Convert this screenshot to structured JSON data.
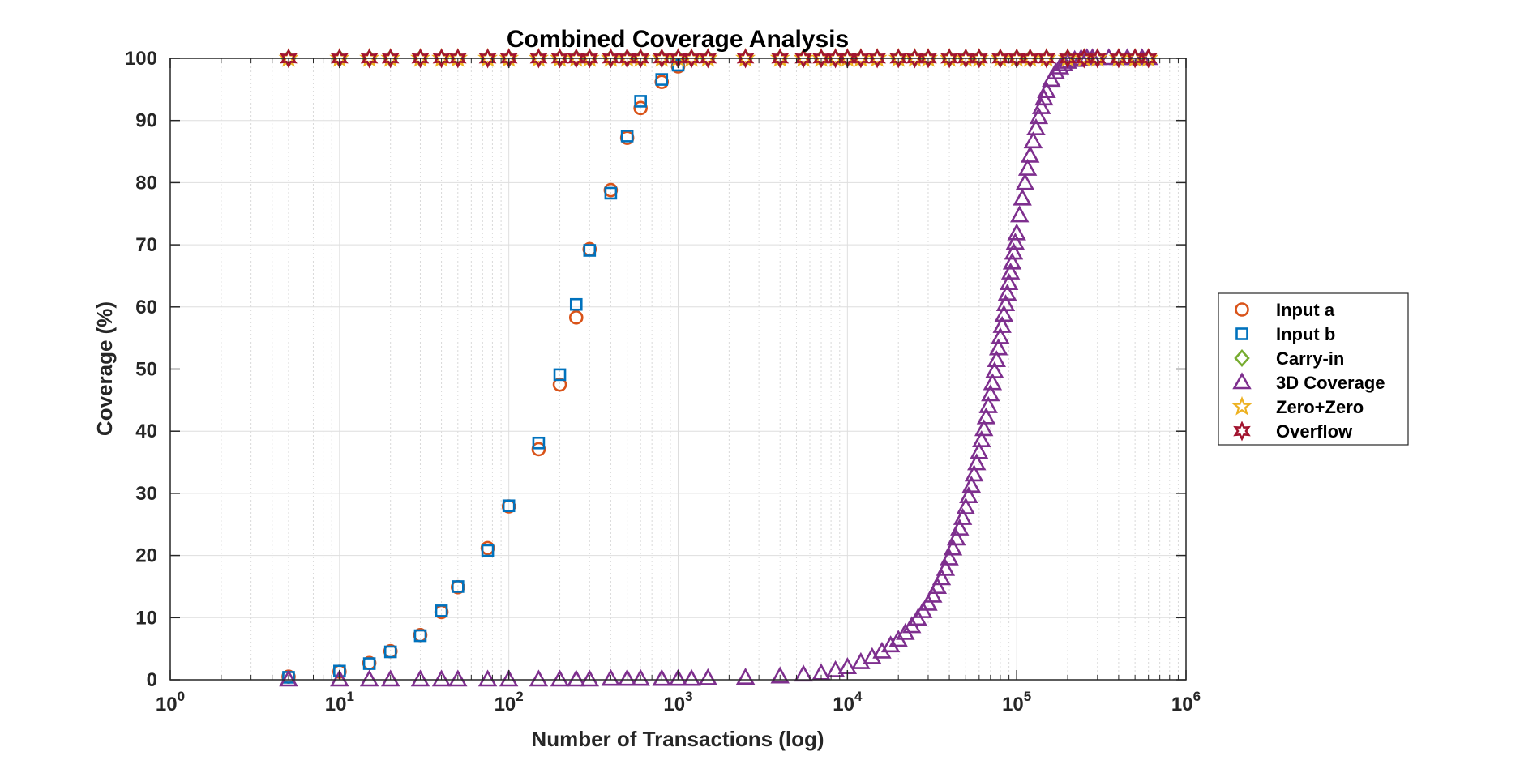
{
  "chart_data": {
    "type": "scatter",
    "title": "Combined Coverage Analysis",
    "xlabel": "Number of Transactions (log)",
    "ylabel": "Coverage (%)",
    "xscale": "log",
    "xlim": [
      1,
      1000000
    ],
    "ylim": [
      0,
      100
    ],
    "grid": true,
    "legend_position": "east-outside",
    "x_ticks": [
      {
        "base": "10",
        "exp": "0",
        "value": 1
      },
      {
        "base": "10",
        "exp": "1",
        "value": 10
      },
      {
        "base": "10",
        "exp": "2",
        "value": 100
      },
      {
        "base": "10",
        "exp": "3",
        "value": 1000
      },
      {
        "base": "10",
        "exp": "4",
        "value": 10000
      },
      {
        "base": "10",
        "exp": "5",
        "value": 100000
      },
      {
        "base": "10",
        "exp": "6",
        "value": 1000000
      }
    ],
    "y_ticks": [
      "0",
      "10",
      "20",
      "30",
      "40",
      "50",
      "60",
      "70",
      "80",
      "90",
      "100"
    ],
    "series": [
      {
        "name": "Input a",
        "marker": "circle",
        "color": "#D95319",
        "x": [
          5,
          10,
          15,
          20,
          30,
          40,
          50,
          75,
          100,
          150,
          200,
          250,
          300,
          400,
          500,
          600,
          800,
          1000
        ],
        "y": [
          0.5,
          1.3,
          2.7,
          4.6,
          7.2,
          10.9,
          14.9,
          21.2,
          27.9,
          37.1,
          47.5,
          58.3,
          69.3,
          78.8,
          87.2,
          92.0,
          96.2,
          98.7
        ]
      },
      {
        "name": "Input b",
        "marker": "square",
        "color": "#0072BD",
        "x": [
          5,
          10,
          15,
          20,
          30,
          40,
          50,
          75,
          100,
          150,
          200,
          250,
          300,
          400,
          500,
          600,
          800,
          1000
        ],
        "y": [
          0.4,
          1.4,
          2.6,
          4.5,
          7.1,
          11.1,
          15.0,
          20.8,
          28.0,
          38.1,
          49.1,
          60.4,
          69.1,
          78.3,
          87.5,
          93.1,
          96.6,
          98.9
        ]
      },
      {
        "name": "Carry-in",
        "marker": "diamond",
        "color": "#77AC30",
        "x": [
          5,
          10,
          15,
          20,
          30,
          40,
          50,
          75,
          100,
          150,
          200,
          250,
          300,
          400,
          500,
          600,
          800,
          1000,
          1200,
          1500,
          2500,
          4000,
          5500,
          7000,
          8500,
          10000,
          12000,
          15000,
          20000,
          25000,
          30000,
          40000,
          50000,
          60000,
          80000,
          100000,
          120000,
          150000,
          200000,
          250000,
          300000,
          400000,
          500000,
          600000
        ],
        "y": [
          100,
          100,
          100,
          100,
          100,
          100,
          100,
          100,
          100,
          100,
          100,
          100,
          100,
          100,
          100,
          100,
          100,
          100,
          100,
          100,
          100,
          100,
          100,
          100,
          100,
          100,
          100,
          100,
          100,
          100,
          100,
          100,
          100,
          100,
          100,
          100,
          100,
          100,
          100,
          100,
          100,
          100,
          100,
          100
        ]
      },
      {
        "name": "3D Coverage",
        "marker": "triangle",
        "color": "#7E2F8E",
        "x": [
          5,
          10,
          15,
          20,
          30,
          40,
          50,
          75,
          100,
          150,
          200,
          250,
          300,
          400,
          500,
          600,
          800,
          1000,
          1200,
          1500,
          2500,
          4000,
          5500,
          7000,
          8500,
          10000,
          12000,
          14000,
          16000,
          18000,
          20000,
          22000,
          24000,
          26000,
          28000,
          30000,
          32000,
          34000,
          36000,
          38000,
          40000,
          42000,
          44000,
          46000,
          48000,
          50000,
          52000,
          54000,
          56000,
          58000,
          60000,
          62000,
          64000,
          66000,
          68000,
          70000,
          72000,
          74000,
          76000,
          78000,
          80000,
          82000,
          84000,
          86000,
          88000,
          90000,
          92000,
          94000,
          96000,
          98000,
          100000,
          104000,
          108000,
          112000,
          116000,
          120000,
          125000,
          130000,
          135000,
          140000,
          145000,
          150000,
          160000,
          170000,
          180000,
          190000,
          200000,
          220000,
          240000,
          260000,
          280000,
          300000,
          350000,
          400000,
          450000,
          500000,
          550000,
          600000
        ],
        "y": [
          0,
          0,
          0,
          0,
          0,
          0,
          0,
          0,
          0,
          0,
          0,
          0,
          0,
          0.1,
          0.1,
          0.1,
          0.1,
          0.1,
          0.1,
          0.2,
          0.3,
          0.5,
          0.8,
          1.0,
          1.5,
          2.0,
          2.8,
          3.6,
          4.5,
          5.5,
          6.4,
          7.5,
          8.6,
          9.8,
          11.0,
          12.2,
          13.5,
          14.9,
          16.3,
          17.8,
          19.5,
          21.1,
          22.7,
          24.3,
          26.0,
          27.7,
          29.5,
          31.2,
          33.0,
          34.8,
          36.6,
          38.5,
          40.3,
          42.2,
          44.0,
          45.9,
          47.7,
          49.6,
          51.4,
          53.3,
          55.1,
          56.9,
          58.7,
          60.4,
          62.1,
          63.8,
          65.5,
          67.1,
          68.7,
          70.3,
          71.8,
          74.7,
          77.4,
          79.9,
          82.2,
          84.3,
          86.6,
          88.7,
          90.5,
          92.1,
          93.5,
          94.7,
          96.5,
          97.7,
          98.5,
          99.0,
          99.4,
          99.7,
          99.9,
          100,
          100,
          100,
          100,
          100,
          100,
          100,
          100,
          100
        ]
      },
      {
        "name": "Zero+Zero",
        "marker": "pentagram",
        "color": "#EDB120",
        "x": [
          5,
          10,
          15,
          20,
          30,
          40,
          50,
          75,
          100,
          150,
          200,
          250,
          300,
          400,
          500,
          600,
          800,
          1000,
          1200,
          1500,
          2500,
          4000,
          5500,
          7000,
          8500,
          10000,
          12000,
          15000,
          20000,
          25000,
          30000,
          40000,
          50000,
          60000,
          80000,
          100000,
          120000,
          150000,
          200000,
          250000,
          300000,
          400000,
          500000,
          600000
        ],
        "y": [
          100,
          100,
          100,
          100,
          100,
          100,
          100,
          100,
          100,
          100,
          100,
          100,
          100,
          100,
          100,
          100,
          100,
          100,
          100,
          100,
          100,
          100,
          100,
          100,
          100,
          100,
          100,
          100,
          100,
          100,
          100,
          100,
          100,
          100,
          100,
          100,
          100,
          100,
          100,
          100,
          100,
          100,
          100,
          100
        ]
      },
      {
        "name": "Overflow",
        "marker": "hexagram",
        "color": "#A2142F",
        "x": [
          5,
          10,
          15,
          20,
          30,
          40,
          50,
          75,
          100,
          150,
          200,
          250,
          300,
          400,
          500,
          600,
          800,
          1000,
          1200,
          1500,
          2500,
          4000,
          5500,
          7000,
          8500,
          10000,
          12000,
          15000,
          20000,
          25000,
          30000,
          40000,
          50000,
          60000,
          80000,
          100000,
          120000,
          150000,
          200000,
          250000,
          300000,
          400000,
          500000,
          600000
        ],
        "y": [
          100,
          100,
          100,
          100,
          100,
          100,
          100,
          100,
          100,
          100,
          100,
          100,
          100,
          100,
          100,
          100,
          100,
          100,
          100,
          100,
          100,
          100,
          100,
          100,
          100,
          100,
          100,
          100,
          100,
          100,
          100,
          100,
          100,
          100,
          100,
          100,
          100,
          100,
          100,
          100,
          100,
          100,
          100,
          100
        ]
      }
    ]
  }
}
